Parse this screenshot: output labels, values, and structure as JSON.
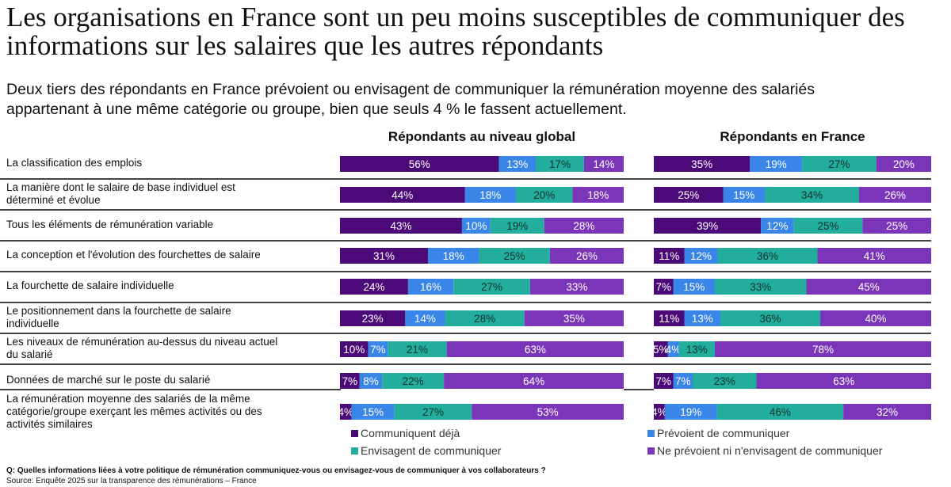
{
  "header": {
    "title_line1": "Les organisations en France sont un peu moins susceptibles de communiquer des",
    "title_line2": "informations sur les salaires que les autres répondants",
    "subtitle_line1": "Deux tiers des répondants en France prévoient ou envisagent de communiquer la rémunération moyenne des salariés",
    "subtitle_line2": "appartenant à une même catégorie ou groupe, bien que seuls 4 % le fassent actuellement."
  },
  "footer": {
    "question": "Q: Quelles informations liées à votre politique de rémunération communiquez-vous ou envisagez-vous de communiquer à vos collaborateurs ?",
    "source": "Source: Enquête 2025 sur la transparence des rémunérations – France"
  },
  "chart_data": {
    "type": "bar",
    "orientation": "horizontal",
    "stacked": true,
    "percent_scale": [
      0,
      100
    ],
    "categories": [
      "La classification des emplois",
      "La manière dont le salaire de base individuel est déterminé et évolue",
      "Tous les éléments de rémunération variable",
      "La conception et l'évolution des fourchettes de salaire",
      "La fourchette de salaire individuelle",
      "Le positionnement dans la fourchette de salaire individuelle",
      "Les niveaux de rémunération au-dessus du niveau actuel du salarié",
      "Données de marché sur le poste du salarié",
      "La rémunération moyenne des salariés de la même catégorie/groupe exerçant les mêmes activités ou des activités similaires"
    ],
    "category_lines": [
      [
        "La classification des emplois"
      ],
      [
        "La manière dont le salaire de base individuel est",
        "déterminé et évolue"
      ],
      [
        "Tous les éléments de rémunération variable"
      ],
      [
        "La conception et l'évolution des fourchettes de salaire"
      ],
      [
        "La fourchette de salaire individuelle"
      ],
      [
        "Le positionnement dans la fourchette de salaire",
        "individuelle"
      ],
      [
        "Les niveaux de rémunération au-dessus du niveau actuel",
        "du salarié"
      ],
      [
        "Données de marché sur le poste du salarié"
      ],
      [
        "La rémunération moyenne des salariés de la même",
        "catégorie/groupe exerçant les mêmes activités ou des",
        "activités similaires"
      ]
    ],
    "legend": [
      {
        "name": "Communiquent déjà",
        "color": "#4b0a78",
        "label_color": "#ffffff"
      },
      {
        "name": "Prévoient de communiquer",
        "color": "#3a85e8",
        "label_color": "#ffffff"
      },
      {
        "name": "Envisagent de communiquer",
        "color": "#23ad9d",
        "label_color": "#12332f"
      },
      {
        "name": "Ne prévoient ni n'envisagent de communiquer",
        "color": "#7b35b8",
        "label_color": "#ffffff"
      }
    ],
    "panels": [
      {
        "title": "Répondants au niveau global",
        "series": [
          {
            "name": "Communiquent déjà",
            "values": [
              56,
              44,
              43,
              31,
              24,
              23,
              10,
              7,
              4
            ]
          },
          {
            "name": "Prévoient de communiquer",
            "values": [
              13,
              18,
              10,
              18,
              16,
              14,
              7,
              8,
              15
            ]
          },
          {
            "name": "Envisagent de communiquer",
            "values": [
              17,
              20,
              19,
              25,
              27,
              28,
              21,
              22,
              27
            ]
          },
          {
            "name": "Ne prévoient ni n'envisagent de communiquer",
            "values": [
              14,
              18,
              28,
              26,
              33,
              35,
              63,
              64,
              53
            ]
          }
        ]
      },
      {
        "title": "Répondants en France",
        "series": [
          {
            "name": "Communiquent déjà",
            "values": [
              35,
              25,
              39,
              11,
              7,
              11,
              5,
              7,
              4
            ]
          },
          {
            "name": "Prévoient de communiquer",
            "values": [
              19,
              15,
              12,
              12,
              15,
              13,
              4,
              7,
              19
            ]
          },
          {
            "name": "Envisagent de communiquer",
            "values": [
              27,
              34,
              25,
              36,
              33,
              36,
              13,
              23,
              46
            ]
          },
          {
            "name": "Ne prévoient ni n'envisagent de communiquer",
            "values": [
              20,
              26,
              25,
              41,
              45,
              40,
              78,
              63,
              32
            ]
          }
        ]
      }
    ],
    "value_suffix": "%"
  }
}
